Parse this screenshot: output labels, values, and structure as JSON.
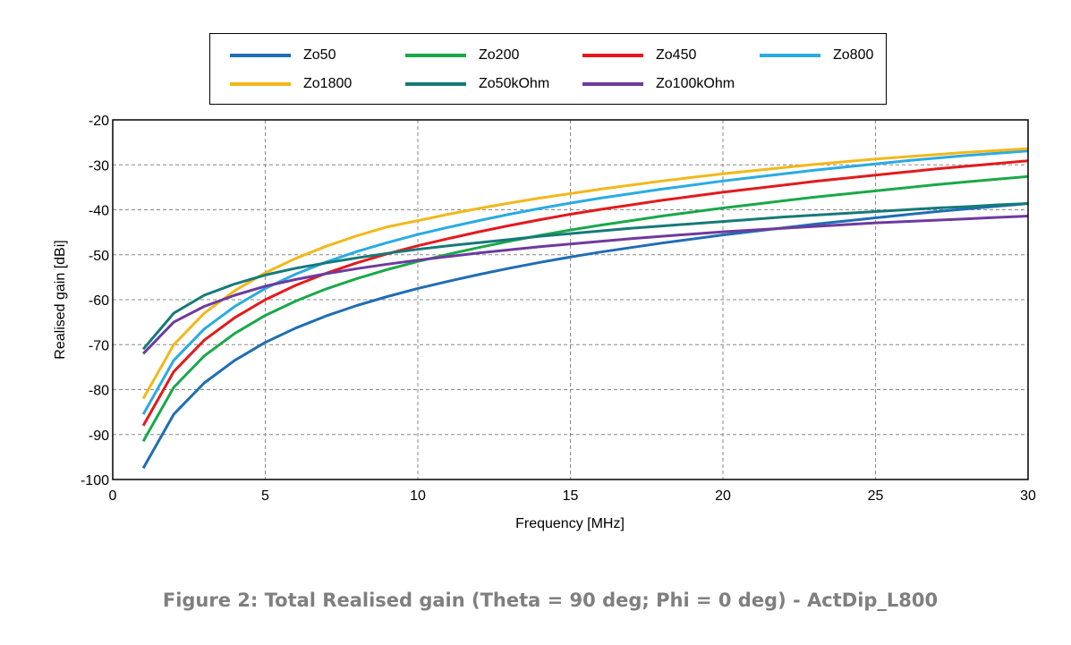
{
  "chart_data": {
    "type": "line",
    "xlabel": "Frequency [MHz]",
    "ylabel": "Realised gain [dBi]",
    "xlim": [
      0,
      30
    ],
    "ylim": [
      -100,
      -20
    ],
    "xticks": [
      0,
      5,
      10,
      15,
      20,
      25,
      30
    ],
    "yticks": [
      -100,
      -90,
      -80,
      -70,
      -60,
      -50,
      -40,
      -30,
      -20
    ],
    "grid": true,
    "legend_position": "top",
    "x": [
      1,
      2,
      3,
      4,
      5,
      6,
      7,
      8,
      9,
      10,
      11,
      12,
      13,
      14,
      15,
      16,
      17,
      18,
      19,
      20,
      21,
      22,
      23,
      24,
      25,
      26,
      27,
      28,
      29,
      30
    ],
    "series": [
      {
        "name": "Zo50",
        "color": "#1f6db5",
        "values": [
          -97.5,
          -85.5,
          -78.5,
          -73.5,
          -69.5,
          -66.3,
          -63.6,
          -61.3,
          -59.3,
          -57.5,
          -55.9,
          -54.4,
          -53.0,
          -51.7,
          -50.5,
          -49.4,
          -48.4,
          -47.4,
          -46.5,
          -45.6,
          -44.8,
          -44.0,
          -43.2,
          -42.5,
          -41.8,
          -41.1,
          -40.4,
          -39.8,
          -39.2,
          -38.6
        ]
      },
      {
        "name": "Zo200",
        "color": "#1aa84a",
        "values": [
          -91.5,
          -79.5,
          -72.5,
          -67.5,
          -63.5,
          -60.3,
          -57.6,
          -55.3,
          -53.3,
          -51.5,
          -49.9,
          -48.4,
          -47.0,
          -45.7,
          -44.5,
          -43.4,
          -42.4,
          -41.4,
          -40.5,
          -39.6,
          -38.8,
          -38.0,
          -37.2,
          -36.5,
          -35.8,
          -35.1,
          -34.4,
          -33.8,
          -33.2,
          -32.6
        ]
      },
      {
        "name": "Zo450",
        "color": "#e31a1c",
        "values": [
          -88.0,
          -76.0,
          -69.0,
          -64.0,
          -60.0,
          -56.8,
          -54.1,
          -51.8,
          -49.8,
          -48.0,
          -46.4,
          -44.9,
          -43.5,
          -42.2,
          -41.0,
          -39.9,
          -38.9,
          -37.9,
          -37.0,
          -36.1,
          -35.3,
          -34.5,
          -33.7,
          -33.0,
          -32.3,
          -31.6,
          -30.9,
          -30.3,
          -29.7,
          -29.1
        ]
      },
      {
        "name": "Zo800",
        "color": "#29abe2",
        "values": [
          -85.5,
          -73.5,
          -66.5,
          -61.5,
          -57.5,
          -54.3,
          -51.6,
          -49.3,
          -47.3,
          -45.5,
          -43.9,
          -42.4,
          -41.0,
          -39.7,
          -38.5,
          -37.4,
          -36.4,
          -35.4,
          -34.5,
          -33.6,
          -32.8,
          -32.0,
          -31.2,
          -30.5,
          -29.8,
          -29.1,
          -28.5,
          -27.9,
          -27.4,
          -26.9
        ]
      },
      {
        "name": "Zo1800",
        "color": "#f2b81b",
        "values": [
          -82.0,
          -70.0,
          -63.0,
          -58.0,
          -54.0,
          -50.8,
          -48.1,
          -45.8,
          -43.8,
          -42.4,
          -41.0,
          -39.7,
          -38.5,
          -37.4,
          -36.4,
          -35.4,
          -34.5,
          -33.6,
          -32.8,
          -32.0,
          -31.3,
          -30.6,
          -29.9,
          -29.3,
          -28.7,
          -28.2,
          -27.7,
          -27.2,
          -26.8,
          -26.4
        ]
      },
      {
        "name": "Zo50kOhm",
        "color": "#167a78",
        "values": [
          -71.0,
          -63.0,
          -59.0,
          -56.5,
          -54.5,
          -53.0,
          -51.8,
          -50.7,
          -49.7,
          -48.8,
          -48.0,
          -47.3,
          -46.6,
          -45.9,
          -45.3,
          -44.7,
          -44.1,
          -43.6,
          -43.1,
          -42.6,
          -42.1,
          -41.6,
          -41.2,
          -40.8,
          -40.4,
          -40.0,
          -39.6,
          -39.3,
          -38.9,
          -38.6
        ]
      },
      {
        "name": "Zo100kOhm",
        "color": "#6e3a9e",
        "values": [
          -72.0,
          -65.0,
          -61.5,
          -59.0,
          -57.0,
          -55.5,
          -54.2,
          -53.1,
          -52.1,
          -51.2,
          -50.4,
          -49.6,
          -48.9,
          -48.2,
          -47.6,
          -47.0,
          -46.4,
          -45.9,
          -45.4,
          -44.9,
          -44.5,
          -44.1,
          -43.7,
          -43.3,
          -42.9,
          -42.6,
          -42.3,
          -42.0,
          -41.7,
          -41.4
        ]
      }
    ]
  },
  "legend_order": [
    "Zo50",
    "Zo200",
    "Zo450",
    "Zo800",
    "Zo1800",
    "Zo50kOhm",
    "Zo100kOhm"
  ],
  "caption": "Figure 2: Total Realised gain (Theta = 90 deg; Phi = 0 deg) - ActDip_L800"
}
